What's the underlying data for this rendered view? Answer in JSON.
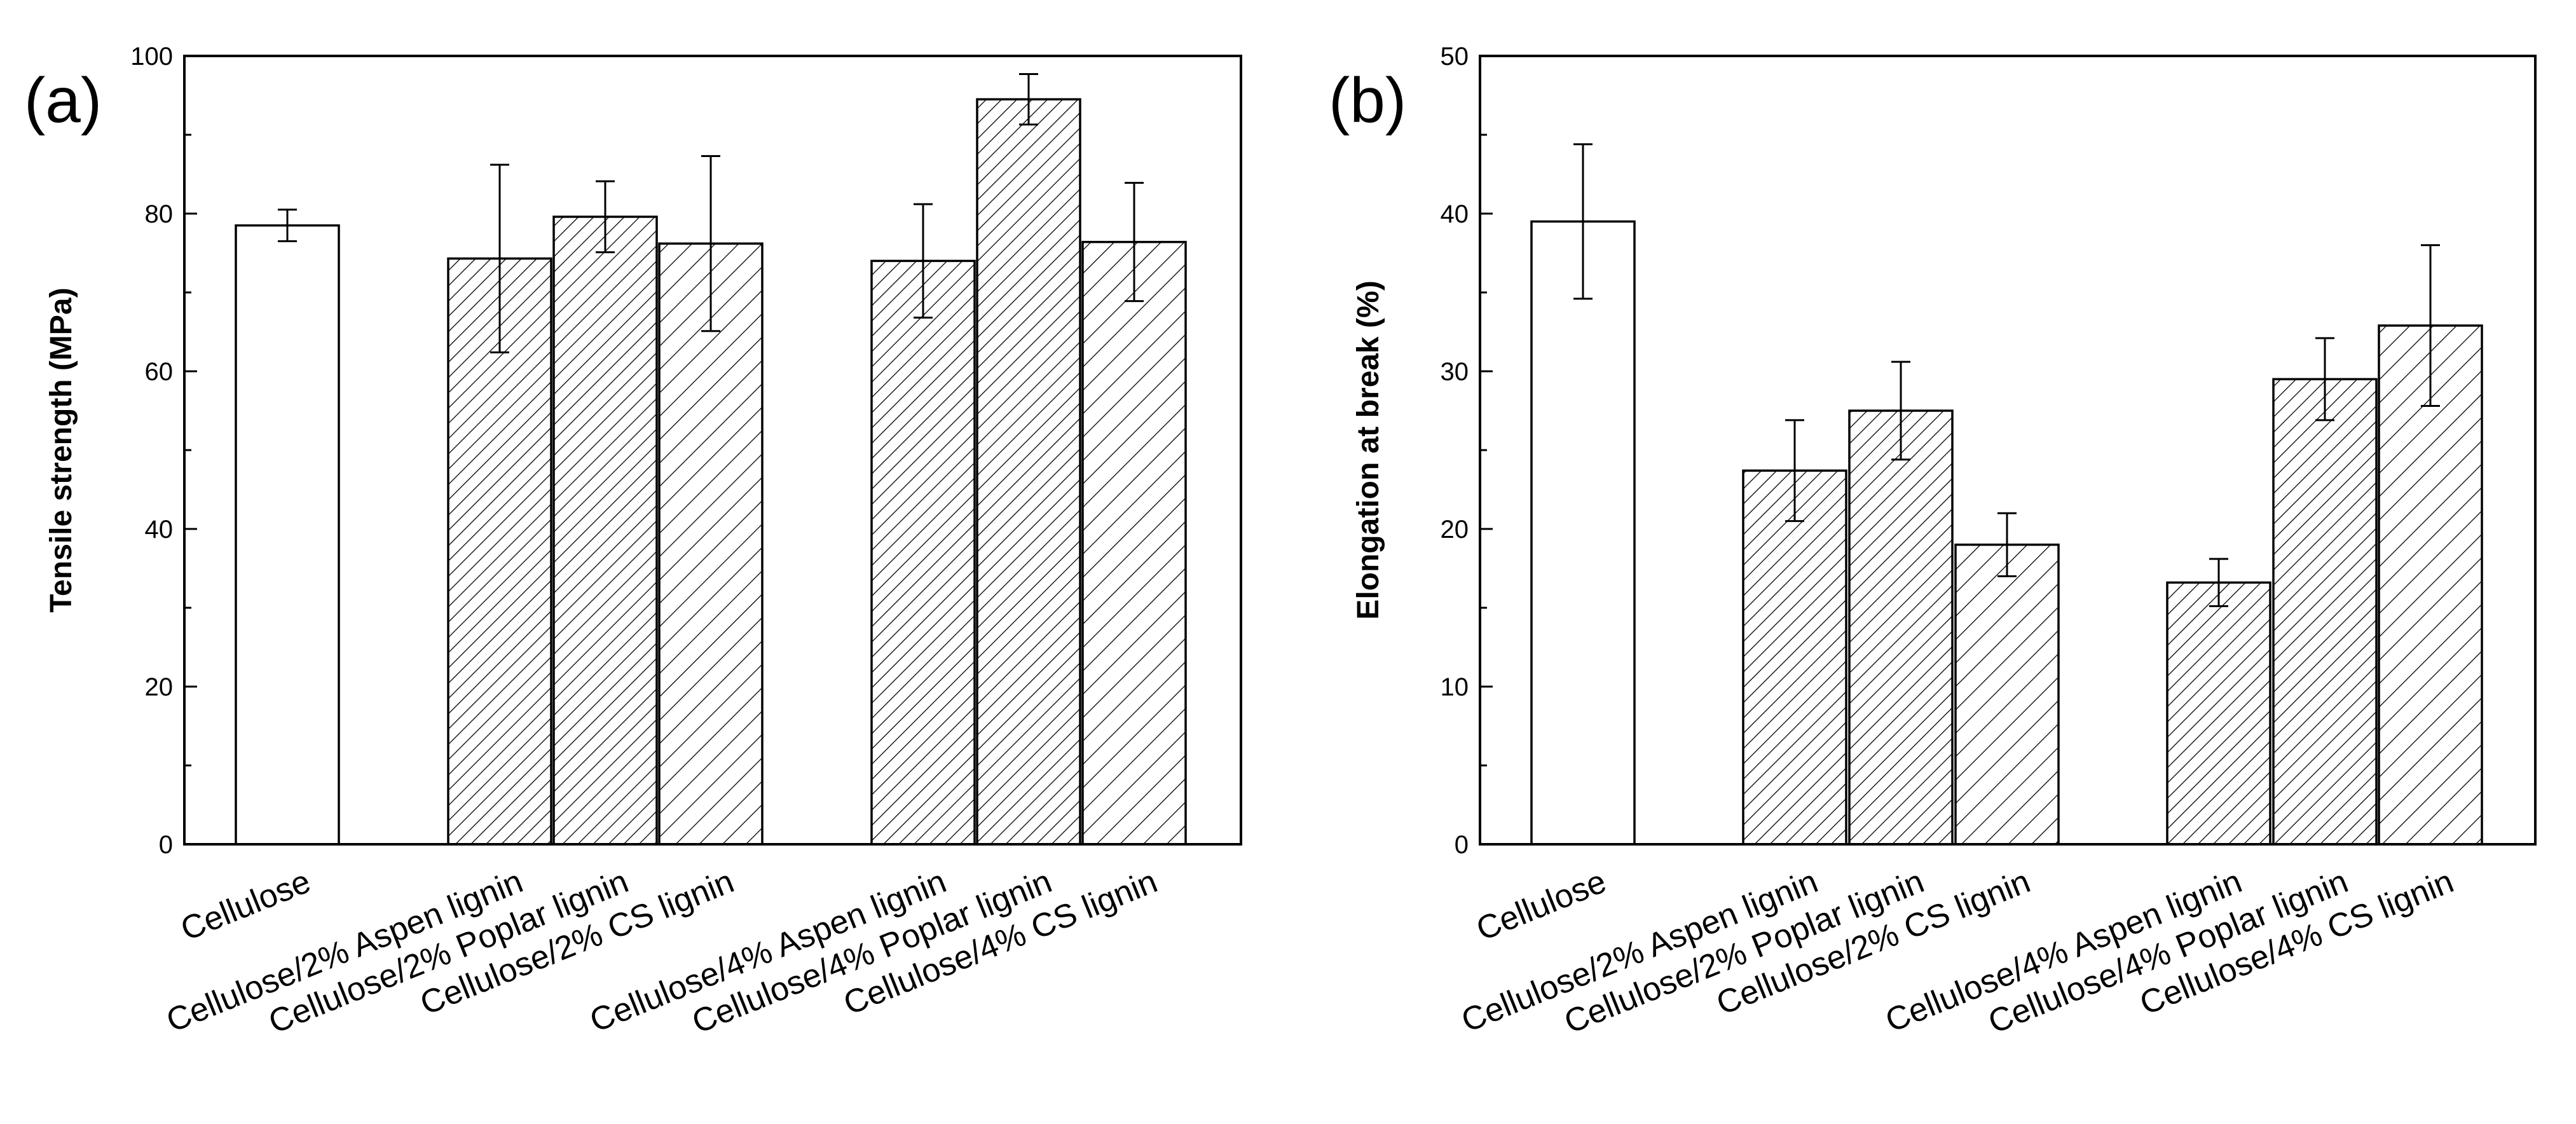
{
  "chart_data": [
    {
      "type": "bar",
      "panel_label": "(a)",
      "title": "",
      "xlabel": "",
      "ylabel": "Tensile strength (MPa)",
      "ylim": [
        0,
        100
      ],
      "yticks": [
        0,
        20,
        40,
        60,
        80,
        100
      ],
      "categories": [
        "Cellulose",
        "Cellulose/2% Aspen lignin",
        "Cellulose/2% Poplar lignin",
        "Cellulose/2% CS lignin",
        "Cellulose/4% Aspen lignin",
        "Cellulose/4% Poplar lignin",
        "Cellulose/4% CS lignin"
      ],
      "values": [
        78.5,
        74.3,
        79.6,
        76.2,
        74.0,
        94.5,
        76.4
      ],
      "errors": [
        2.0,
        11.9,
        4.5,
        11.1,
        7.2,
        3.2,
        7.5
      ],
      "fills": [
        "open",
        "hatch-dense",
        "hatch-dense",
        "hatch-sparse",
        "hatch-dense",
        "hatch-dense",
        "hatch-sparse"
      ]
    },
    {
      "type": "bar",
      "panel_label": "(b)",
      "title": "",
      "xlabel": "",
      "ylabel": "Elongation at break (%)",
      "ylim": [
        0,
        50
      ],
      "yticks": [
        0,
        10,
        20,
        30,
        40,
        50
      ],
      "categories": [
        "Cellulose",
        "Cellulose/2% Aspen lignin",
        "Cellulose/2% Poplar lignin",
        "Cellulose/2% CS lignin",
        "Cellulose/4% Aspen lignin",
        "Cellulose/4% Poplar lignin",
        "Cellulose/4% CS lignin"
      ],
      "values": [
        39.5,
        23.7,
        27.5,
        19.0,
        16.6,
        29.5,
        32.9
      ],
      "errors": [
        4.9,
        3.2,
        3.1,
        2.0,
        1.5,
        2.6,
        5.1
      ],
      "fills": [
        "open",
        "hatch-dense",
        "hatch-dense",
        "hatch-sparse",
        "hatch-dense",
        "hatch-dense",
        "hatch-sparse"
      ]
    }
  ]
}
